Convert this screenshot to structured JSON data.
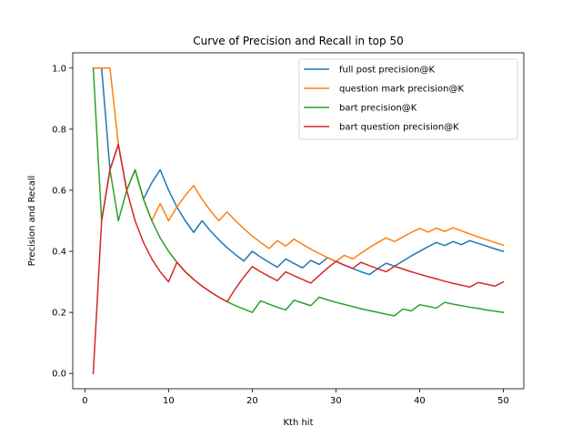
{
  "chart_data": {
    "type": "line",
    "title": "Curve of Precision and Recall in top 50",
    "xlabel": "Kth hit",
    "ylabel": "Precision and Recall",
    "xlim": [
      -1.45,
      52.45
    ],
    "ylim": [
      -0.05,
      1.05
    ],
    "xticks": [
      0,
      10,
      20,
      30,
      40,
      50
    ],
    "yticks": [
      0.0,
      0.2,
      0.4,
      0.6,
      0.8,
      1.0
    ],
    "xtick_labels": [
      "0",
      "10",
      "20",
      "30",
      "40",
      "50"
    ],
    "ytick_labels": [
      "0.0",
      "0.2",
      "0.4",
      "0.6",
      "0.8",
      "1.0"
    ],
    "grid": false,
    "legend_position": "top-right",
    "x": [
      1,
      2,
      3,
      4,
      5,
      6,
      7,
      8,
      9,
      10,
      11,
      12,
      13,
      14,
      15,
      16,
      17,
      18,
      19,
      20,
      21,
      22,
      23,
      24,
      25,
      26,
      27,
      28,
      29,
      30,
      31,
      32,
      33,
      34,
      35,
      36,
      37,
      38,
      39,
      40,
      41,
      42,
      43,
      44,
      45,
      46,
      47,
      48,
      49,
      50
    ],
    "series": [
      {
        "name": "full post precision@K",
        "color": "#1f77b4",
        "values": [
          1.0,
          1.0,
          0.667,
          0.75,
          0.6,
          0.667,
          0.571,
          0.625,
          0.667,
          0.6,
          0.545,
          0.5,
          0.462,
          0.5,
          0.467,
          0.438,
          0.412,
          0.389,
          0.368,
          0.4,
          0.381,
          0.364,
          0.348,
          0.375,
          0.36,
          0.346,
          0.37,
          0.357,
          0.379,
          0.367,
          0.355,
          0.344,
          0.333,
          0.324,
          0.343,
          0.361,
          0.351,
          0.368,
          0.385,
          0.4,
          0.415,
          0.429,
          0.419,
          0.432,
          0.422,
          0.435,
          0.426,
          0.417,
          0.408,
          0.4
        ]
      },
      {
        "name": "question mark precision@K",
        "color": "#ff7f0e",
        "values": [
          1.0,
          1.0,
          1.0,
          0.75,
          0.6,
          0.667,
          0.571,
          0.5,
          0.556,
          0.5,
          0.545,
          0.583,
          0.615,
          0.571,
          0.533,
          0.5,
          0.529,
          0.5,
          0.474,
          0.45,
          0.429,
          0.409,
          0.435,
          0.417,
          0.44,
          0.423,
          0.407,
          0.393,
          0.379,
          0.367,
          0.387,
          0.375,
          0.394,
          0.412,
          0.429,
          0.444,
          0.432,
          0.447,
          0.462,
          0.475,
          0.463,
          0.476,
          0.465,
          0.477,
          0.467,
          0.457,
          0.447,
          0.438,
          0.429,
          0.42
        ]
      },
      {
        "name": "bart precision@K",
        "color": "#2ca02c",
        "values": [
          1.0,
          0.5,
          0.667,
          0.5,
          0.6,
          0.667,
          0.571,
          0.5,
          0.444,
          0.4,
          0.364,
          0.333,
          0.308,
          0.286,
          0.267,
          0.25,
          0.235,
          0.222,
          0.211,
          0.2,
          0.238,
          0.227,
          0.217,
          0.208,
          0.24,
          0.231,
          0.222,
          0.25,
          0.241,
          0.233,
          0.226,
          0.219,
          0.212,
          0.206,
          0.2,
          0.194,
          0.189,
          0.211,
          0.205,
          0.225,
          0.22,
          0.214,
          0.233,
          0.227,
          0.222,
          0.217,
          0.213,
          0.208,
          0.204,
          0.2
        ]
      },
      {
        "name": "bart question precision@K",
        "color": "#d62728",
        "values": [
          0.0,
          0.5,
          0.667,
          0.75,
          0.6,
          0.5,
          0.429,
          0.375,
          0.333,
          0.3,
          0.364,
          0.333,
          0.308,
          0.286,
          0.267,
          0.25,
          0.235,
          0.278,
          0.316,
          0.35,
          0.333,
          0.318,
          0.304,
          0.333,
          0.32,
          0.308,
          0.296,
          0.321,
          0.345,
          0.367,
          0.355,
          0.344,
          0.364,
          0.353,
          0.343,
          0.333,
          0.351,
          0.342,
          0.333,
          0.325,
          0.317,
          0.31,
          0.302,
          0.295,
          0.289,
          0.283,
          0.298,
          0.292,
          0.286,
          0.3
        ]
      }
    ]
  }
}
